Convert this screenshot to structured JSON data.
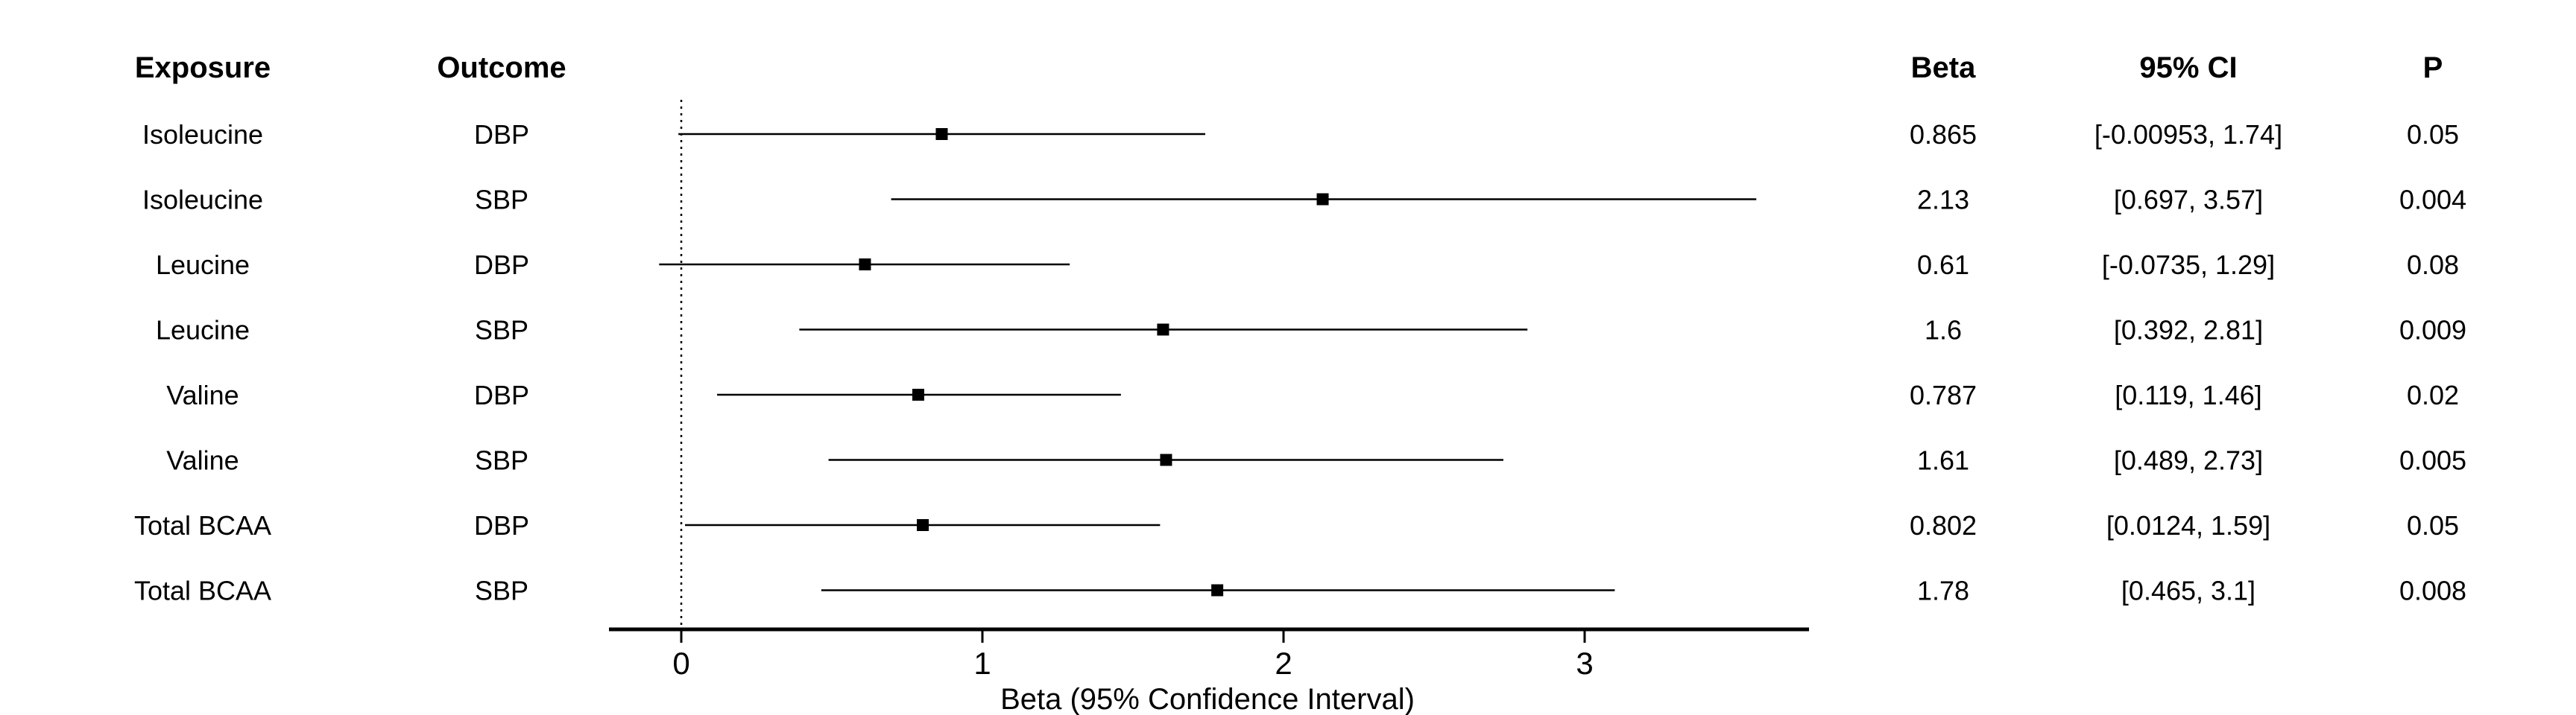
{
  "headers": {
    "exposure": "Exposure",
    "outcome": "Outcome",
    "beta": "Beta",
    "ci": "95% CI",
    "p": "P"
  },
  "chart_data": {
    "type": "forest",
    "xlabel": "Beta (95% Confidence Interval)",
    "xlim": [
      -0.25,
      3.75
    ],
    "xticks": [
      0,
      1,
      2,
      3
    ],
    "reference_line": 0,
    "rows": [
      {
        "exposure": "Isoleucine",
        "outcome": "DBP",
        "beta": 0.865,
        "lower": -0.00953,
        "upper": 1.74,
        "beta_label": "0.865",
        "ci_label": "[-0.00953, 1.74]",
        "p": "0.05"
      },
      {
        "exposure": "Isoleucine",
        "outcome": "SBP",
        "beta": 2.13,
        "lower": 0.697,
        "upper": 3.57,
        "beta_label": "2.13",
        "ci_label": "[0.697, 3.57]",
        "p": "0.004"
      },
      {
        "exposure": "Leucine",
        "outcome": "DBP",
        "beta": 0.61,
        "lower": -0.0735,
        "upper": 1.29,
        "beta_label": "0.61",
        "ci_label": "[-0.0735, 1.29]",
        "p": "0.08"
      },
      {
        "exposure": "Leucine",
        "outcome": "SBP",
        "beta": 1.6,
        "lower": 0.392,
        "upper": 2.81,
        "beta_label": "1.6",
        "ci_label": "[0.392, 2.81]",
        "p": "0.009"
      },
      {
        "exposure": "Valine",
        "outcome": "DBP",
        "beta": 0.787,
        "lower": 0.119,
        "upper": 1.46,
        "beta_label": "0.787",
        "ci_label": "[0.119, 1.46]",
        "p": "0.02"
      },
      {
        "exposure": "Valine",
        "outcome": "SBP",
        "beta": 1.61,
        "lower": 0.489,
        "upper": 2.73,
        "beta_label": "1.61",
        "ci_label": "[0.489, 2.73]",
        "p": "0.005"
      },
      {
        "exposure": "Total BCAA",
        "outcome": "DBP",
        "beta": 0.802,
        "lower": 0.0124,
        "upper": 1.59,
        "beta_label": "0.802",
        "ci_label": "[0.0124, 1.59]",
        "p": "0.05"
      },
      {
        "exposure": "Total BCAA",
        "outcome": "SBP",
        "beta": 1.78,
        "lower": 0.465,
        "upper": 3.1,
        "beta_label": "1.78",
        "ci_label": "[0.465, 3.1]",
        "p": "0.008"
      }
    ]
  }
}
